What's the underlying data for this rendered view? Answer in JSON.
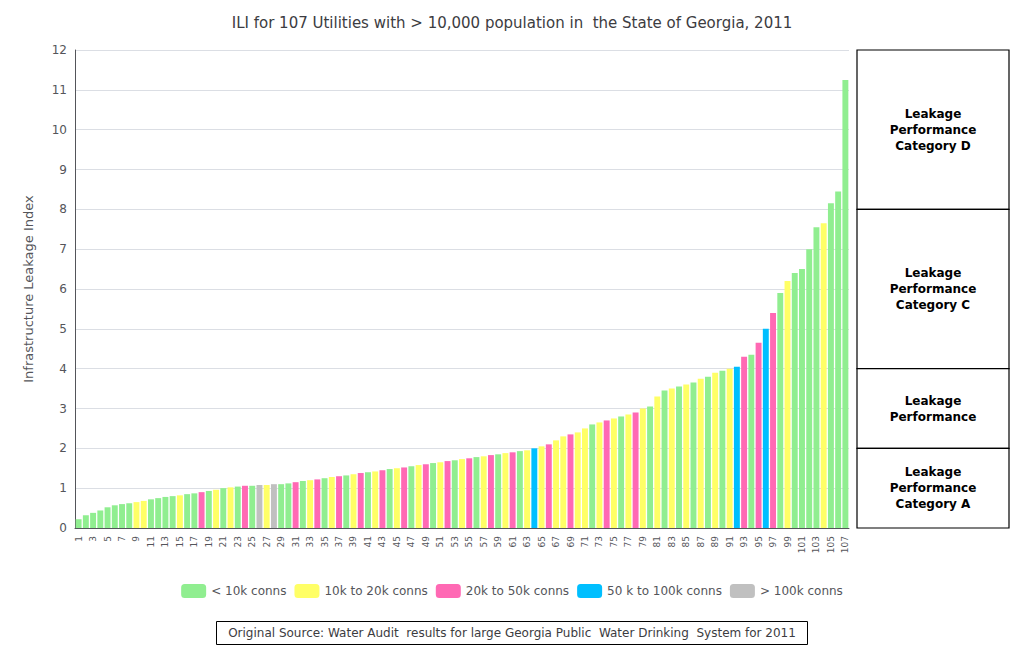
{
  "chart_data": {
    "type": "bar",
    "title": "ILI for 107 Utilities with > 10,000 population in  the State of Georgia, 2011",
    "ylabel": "Infrastructure Leakage Index",
    "ylim": [
      0,
      12
    ],
    "yticks": [
      0,
      1,
      2,
      3,
      4,
      5,
      6,
      7,
      8,
      9,
      10,
      11,
      12
    ],
    "grid": true,
    "legend": "bottom",
    "categories": [
      "1",
      null,
      "3",
      null,
      "5",
      null,
      "7",
      null,
      "9",
      null,
      "11",
      null,
      "13",
      null,
      "15",
      null,
      "17",
      null,
      "19",
      null,
      "21",
      null,
      "23",
      null,
      "25",
      null,
      "27",
      null,
      "29",
      null,
      "31",
      null,
      "33",
      null,
      "35",
      null,
      "37",
      null,
      "39",
      null,
      "41",
      null,
      "43",
      null,
      "45",
      null,
      "47",
      null,
      "49",
      null,
      "51",
      null,
      "53",
      null,
      "55",
      null,
      "57",
      null,
      "59",
      null,
      "61",
      null,
      "63",
      null,
      "65",
      null,
      "67",
      null,
      "69",
      null,
      "71",
      null,
      "73",
      null,
      "75",
      null,
      "77",
      null,
      "79",
      null,
      "81",
      null,
      "83",
      null,
      "85",
      null,
      "87",
      null,
      "89",
      null,
      "91",
      null,
      "93",
      null,
      "95",
      null,
      "97",
      null,
      "99",
      null,
      "101",
      null,
      "103",
      null,
      "105",
      null,
      "107"
    ],
    "series": [
      {
        "name": "< 10k conns",
        "color": "#90EE90",
        "values": [
          0.22,
          0.32,
          0.38,
          0.44,
          0.52,
          0.57,
          0.6,
          0.62,
          null,
          null,
          0.72,
          0.75,
          0.78,
          0.8,
          null,
          0.85,
          0.87,
          null,
          0.93,
          null,
          1.0,
          null,
          1.04,
          null,
          1.06,
          null,
          null,
          null,
          1.1,
          1.12,
          null,
          1.18,
          null,
          null,
          1.25,
          null,
          null,
          1.32,
          null,
          null,
          1.4,
          null,
          null,
          1.48,
          null,
          null,
          1.55,
          null,
          null,
          1.63,
          null,
          null,
          1.7,
          null,
          null,
          1.78,
          null,
          null,
          1.85,
          null,
          null,
          1.93,
          null,
          null,
          null,
          null,
          null,
          null,
          null,
          null,
          null,
          2.6,
          null,
          null,
          null,
          2.8,
          null,
          null,
          null,
          3.05,
          null,
          3.45,
          null,
          3.55,
          null,
          3.65,
          null,
          3.8,
          null,
          3.95,
          null,
          null,
          null,
          4.35,
          null,
          null,
          null,
          5.9,
          null,
          6.4,
          6.5,
          7.0,
          7.55,
          null,
          8.15,
          8.45,
          11.25
        ]
      },
      {
        "name": "10k to 20k conns",
        "color": "#FFFF66",
        "values": [
          null,
          null,
          null,
          null,
          null,
          null,
          null,
          null,
          0.65,
          0.68,
          null,
          null,
          null,
          null,
          0.82,
          null,
          null,
          null,
          null,
          0.96,
          null,
          1.02,
          null,
          null,
          null,
          null,
          1.08,
          null,
          null,
          null,
          null,
          null,
          1.2,
          null,
          null,
          1.28,
          null,
          null,
          1.35,
          null,
          null,
          1.42,
          null,
          null,
          1.5,
          null,
          null,
          1.58,
          null,
          null,
          1.65,
          null,
          null,
          1.73,
          null,
          null,
          1.8,
          null,
          null,
          1.88,
          null,
          null,
          1.95,
          null,
          2.05,
          null,
          2.2,
          2.3,
          null,
          2.4,
          2.5,
          null,
          2.65,
          null,
          2.75,
          null,
          2.85,
          null,
          3.0,
          null,
          3.3,
          null,
          3.5,
          null,
          3.6,
          null,
          3.75,
          null,
          3.9,
          null,
          4.0,
          null,
          null,
          null,
          null,
          null,
          null,
          null,
          6.2,
          null,
          null,
          null,
          null,
          7.65,
          null,
          null,
          null
        ]
      },
      {
        "name": "20k to 50k conns",
        "color": "#FF69B4",
        "values": [
          null,
          null,
          null,
          null,
          null,
          null,
          null,
          null,
          null,
          null,
          null,
          null,
          null,
          null,
          null,
          null,
          null,
          0.9,
          null,
          null,
          null,
          null,
          null,
          1.06,
          null,
          null,
          null,
          null,
          null,
          null,
          1.15,
          null,
          null,
          1.22,
          null,
          null,
          1.3,
          null,
          null,
          1.38,
          null,
          null,
          1.45,
          null,
          null,
          1.52,
          null,
          null,
          1.6,
          null,
          null,
          1.68,
          null,
          null,
          1.75,
          null,
          null,
          1.83,
          null,
          null,
          1.9,
          null,
          null,
          null,
          null,
          2.1,
          null,
          null,
          2.35,
          null,
          null,
          null,
          null,
          2.7,
          null,
          null,
          null,
          2.9,
          null,
          null,
          null,
          null,
          null,
          null,
          null,
          null,
          null,
          null,
          null,
          null,
          null,
          null,
          4.3,
          null,
          4.65,
          null,
          5.4,
          null,
          null,
          null,
          null,
          null,
          null,
          null,
          null,
          null,
          null
        ]
      },
      {
        "name": "50 k to 100k conns",
        "color": "#00BFFF",
        "values": [
          null,
          null,
          null,
          null,
          null,
          null,
          null,
          null,
          null,
          null,
          null,
          null,
          null,
          null,
          null,
          null,
          null,
          null,
          null,
          null,
          null,
          null,
          null,
          null,
          null,
          null,
          null,
          null,
          null,
          null,
          null,
          null,
          null,
          null,
          null,
          null,
          null,
          null,
          null,
          null,
          null,
          null,
          null,
          null,
          null,
          null,
          null,
          null,
          null,
          null,
          null,
          null,
          null,
          null,
          null,
          null,
          null,
          null,
          null,
          null,
          null,
          null,
          null,
          2.0,
          null,
          null,
          null,
          null,
          null,
          null,
          null,
          null,
          null,
          null,
          null,
          null,
          null,
          null,
          null,
          null,
          null,
          null,
          null,
          null,
          null,
          null,
          null,
          null,
          null,
          null,
          null,
          4.05,
          null,
          null,
          null,
          5.0,
          null,
          null,
          null,
          null,
          null,
          null,
          null,
          null,
          null,
          null,
          null
        ]
      },
      {
        "name": "> 100k conns",
        "color": "#C0C0C0",
        "values": [
          null,
          null,
          null,
          null,
          null,
          null,
          null,
          null,
          null,
          null,
          null,
          null,
          null,
          null,
          null,
          null,
          null,
          null,
          null,
          null,
          null,
          null,
          null,
          null,
          null,
          1.08,
          null,
          1.1,
          null,
          null,
          null,
          null,
          null,
          null,
          null,
          null,
          null,
          null,
          null,
          null,
          null,
          null,
          null,
          null,
          null,
          null,
          null,
          null,
          null,
          null,
          null,
          null,
          null,
          null,
          null,
          null,
          null,
          null,
          null,
          null,
          null,
          null,
          null,
          null,
          null,
          null,
          null,
          null,
          null,
          null,
          null,
          null,
          null,
          null,
          null,
          null,
          null,
          null,
          null,
          null,
          null,
          null,
          null,
          null,
          null,
          null,
          null,
          null,
          null,
          null,
          null,
          null,
          null,
          null,
          null,
          null,
          null,
          null,
          null,
          null,
          null,
          null,
          null,
          null,
          null,
          null,
          null
        ]
      }
    ],
    "annotations": [
      {
        "text": "Leakage\nPerformance\nCategory D",
        "ymin": 8.0,
        "ymax": 12.0
      },
      {
        "text": "Leakage\nPerformance\nCategory C",
        "ymin": 4.0,
        "ymax": 8.0
      },
      {
        "text": "Leakage\nPerformance",
        "ymin": 2.0,
        "ymax": 4.0
      },
      {
        "text": "Leakage\nPerformance\nCategory A",
        "ymin": 0.0,
        "ymax": 2.0
      }
    ],
    "source": "Original Source: Water Audit  results for large Georgia Public  Water Drinking  System for 2011"
  }
}
